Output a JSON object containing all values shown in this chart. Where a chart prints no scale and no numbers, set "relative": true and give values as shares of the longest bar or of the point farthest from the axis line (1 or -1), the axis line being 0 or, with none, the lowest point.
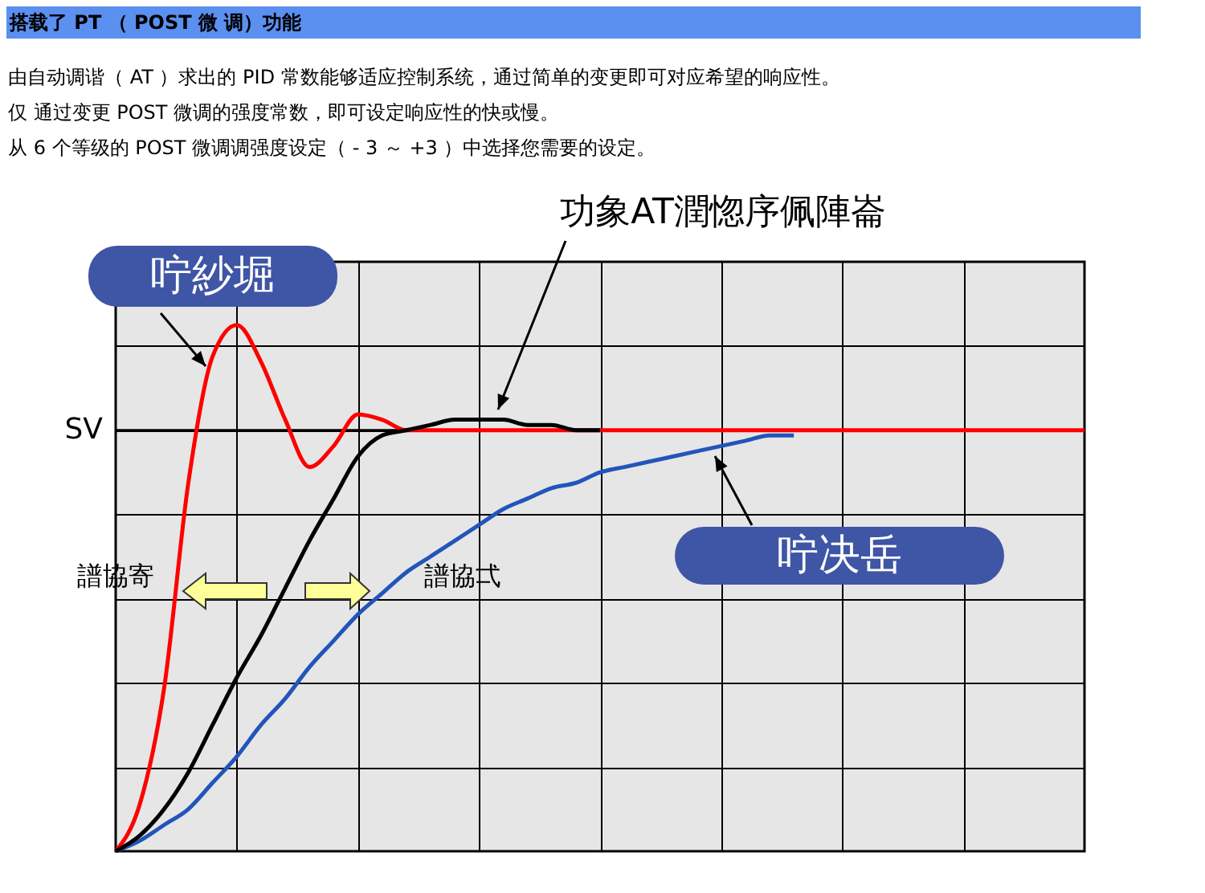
{
  "chart_data": {
    "type": "line",
    "relative": true,
    "grid": true,
    "title": "搭载了 PT （ POST 微 调）功能",
    "categories": [
      null,
      null,
      null,
      null,
      null,
      null,
      null,
      null,
      null,
      null,
      null,
      null,
      null,
      null,
      null,
      null,
      null,
      null,
      null,
      null,
      null,
      null,
      null,
      null,
      null,
      null,
      null,
      null,
      null,
      null,
      null,
      null,
      null,
      null,
      null,
      null,
      null,
      null,
      null,
      null,
      null
    ],
    "series": [
      {
        "name": "咛紗堀",
        "color": "#ff0000",
        "values": [
          0,
          0.09,
          0.31,
          0.7,
          0.94,
          1,
          0.93,
          0.82,
          0.73,
          0.77,
          0.83,
          0.82,
          0.8,
          0.8,
          0.8,
          0.8,
          0.8,
          0.8,
          0.8,
          0.8,
          0.8,
          0.8,
          0.8,
          0.8,
          0.8,
          0.8,
          0.8,
          0.8,
          0.8,
          0.8,
          0.8,
          0.8,
          0.8,
          0.8,
          0.8,
          0.8,
          0.8,
          0.8,
          0.8,
          0.8,
          0.8
        ]
      },
      {
        "name": "功象AT潤惚序佩陣崙",
        "color": "#000000",
        "values": [
          0,
          0.03,
          0.08,
          0.15,
          0.24,
          0.33,
          0.41,
          0.5,
          0.59,
          0.67,
          0.75,
          0.79,
          0.8,
          0.81,
          0.82,
          0.82,
          0.82,
          0.81,
          0.81,
          0.8,
          0.8,
          null,
          null,
          null,
          null,
          null,
          null,
          null,
          null,
          null,
          null,
          null,
          null,
          null,
          null,
          null,
          null,
          null,
          null,
          null,
          null
        ]
      },
      {
        "name": "咛决岳",
        "color": "#2255bb",
        "values": [
          0,
          0.02,
          0.05,
          0.08,
          0.13,
          0.18,
          0.24,
          0.29,
          0.35,
          0.4,
          0.45,
          0.49,
          0.53,
          0.56,
          0.59,
          0.62,
          0.65,
          0.67,
          0.69,
          0.7,
          0.72,
          0.73,
          0.74,
          0.75,
          0.76,
          0.77,
          0.78,
          0.79,
          0.79,
          null,
          null,
          null,
          null,
          null,
          null,
          null,
          null,
          null,
          null,
          null,
          null
        ]
      }
    ],
    "ref_lines": [
      {
        "axis": "y",
        "value": 0.8,
        "label": "SV"
      }
    ],
    "annotations": [
      "由自动调谐（ AT ）求出的 PID 常数能够适应控制系统，通过简单的变更即可对应希望的响应性。",
      "仅 通过变更 POST 微调的强度常数，即可设定响应性的快或慢。",
      "从 6 个等级的 POST 微调调强度设定（ - 3 ～ +3 ）中选择您需要的设定。",
      "譜協寄",
      "譜協弌"
    ]
  }
}
